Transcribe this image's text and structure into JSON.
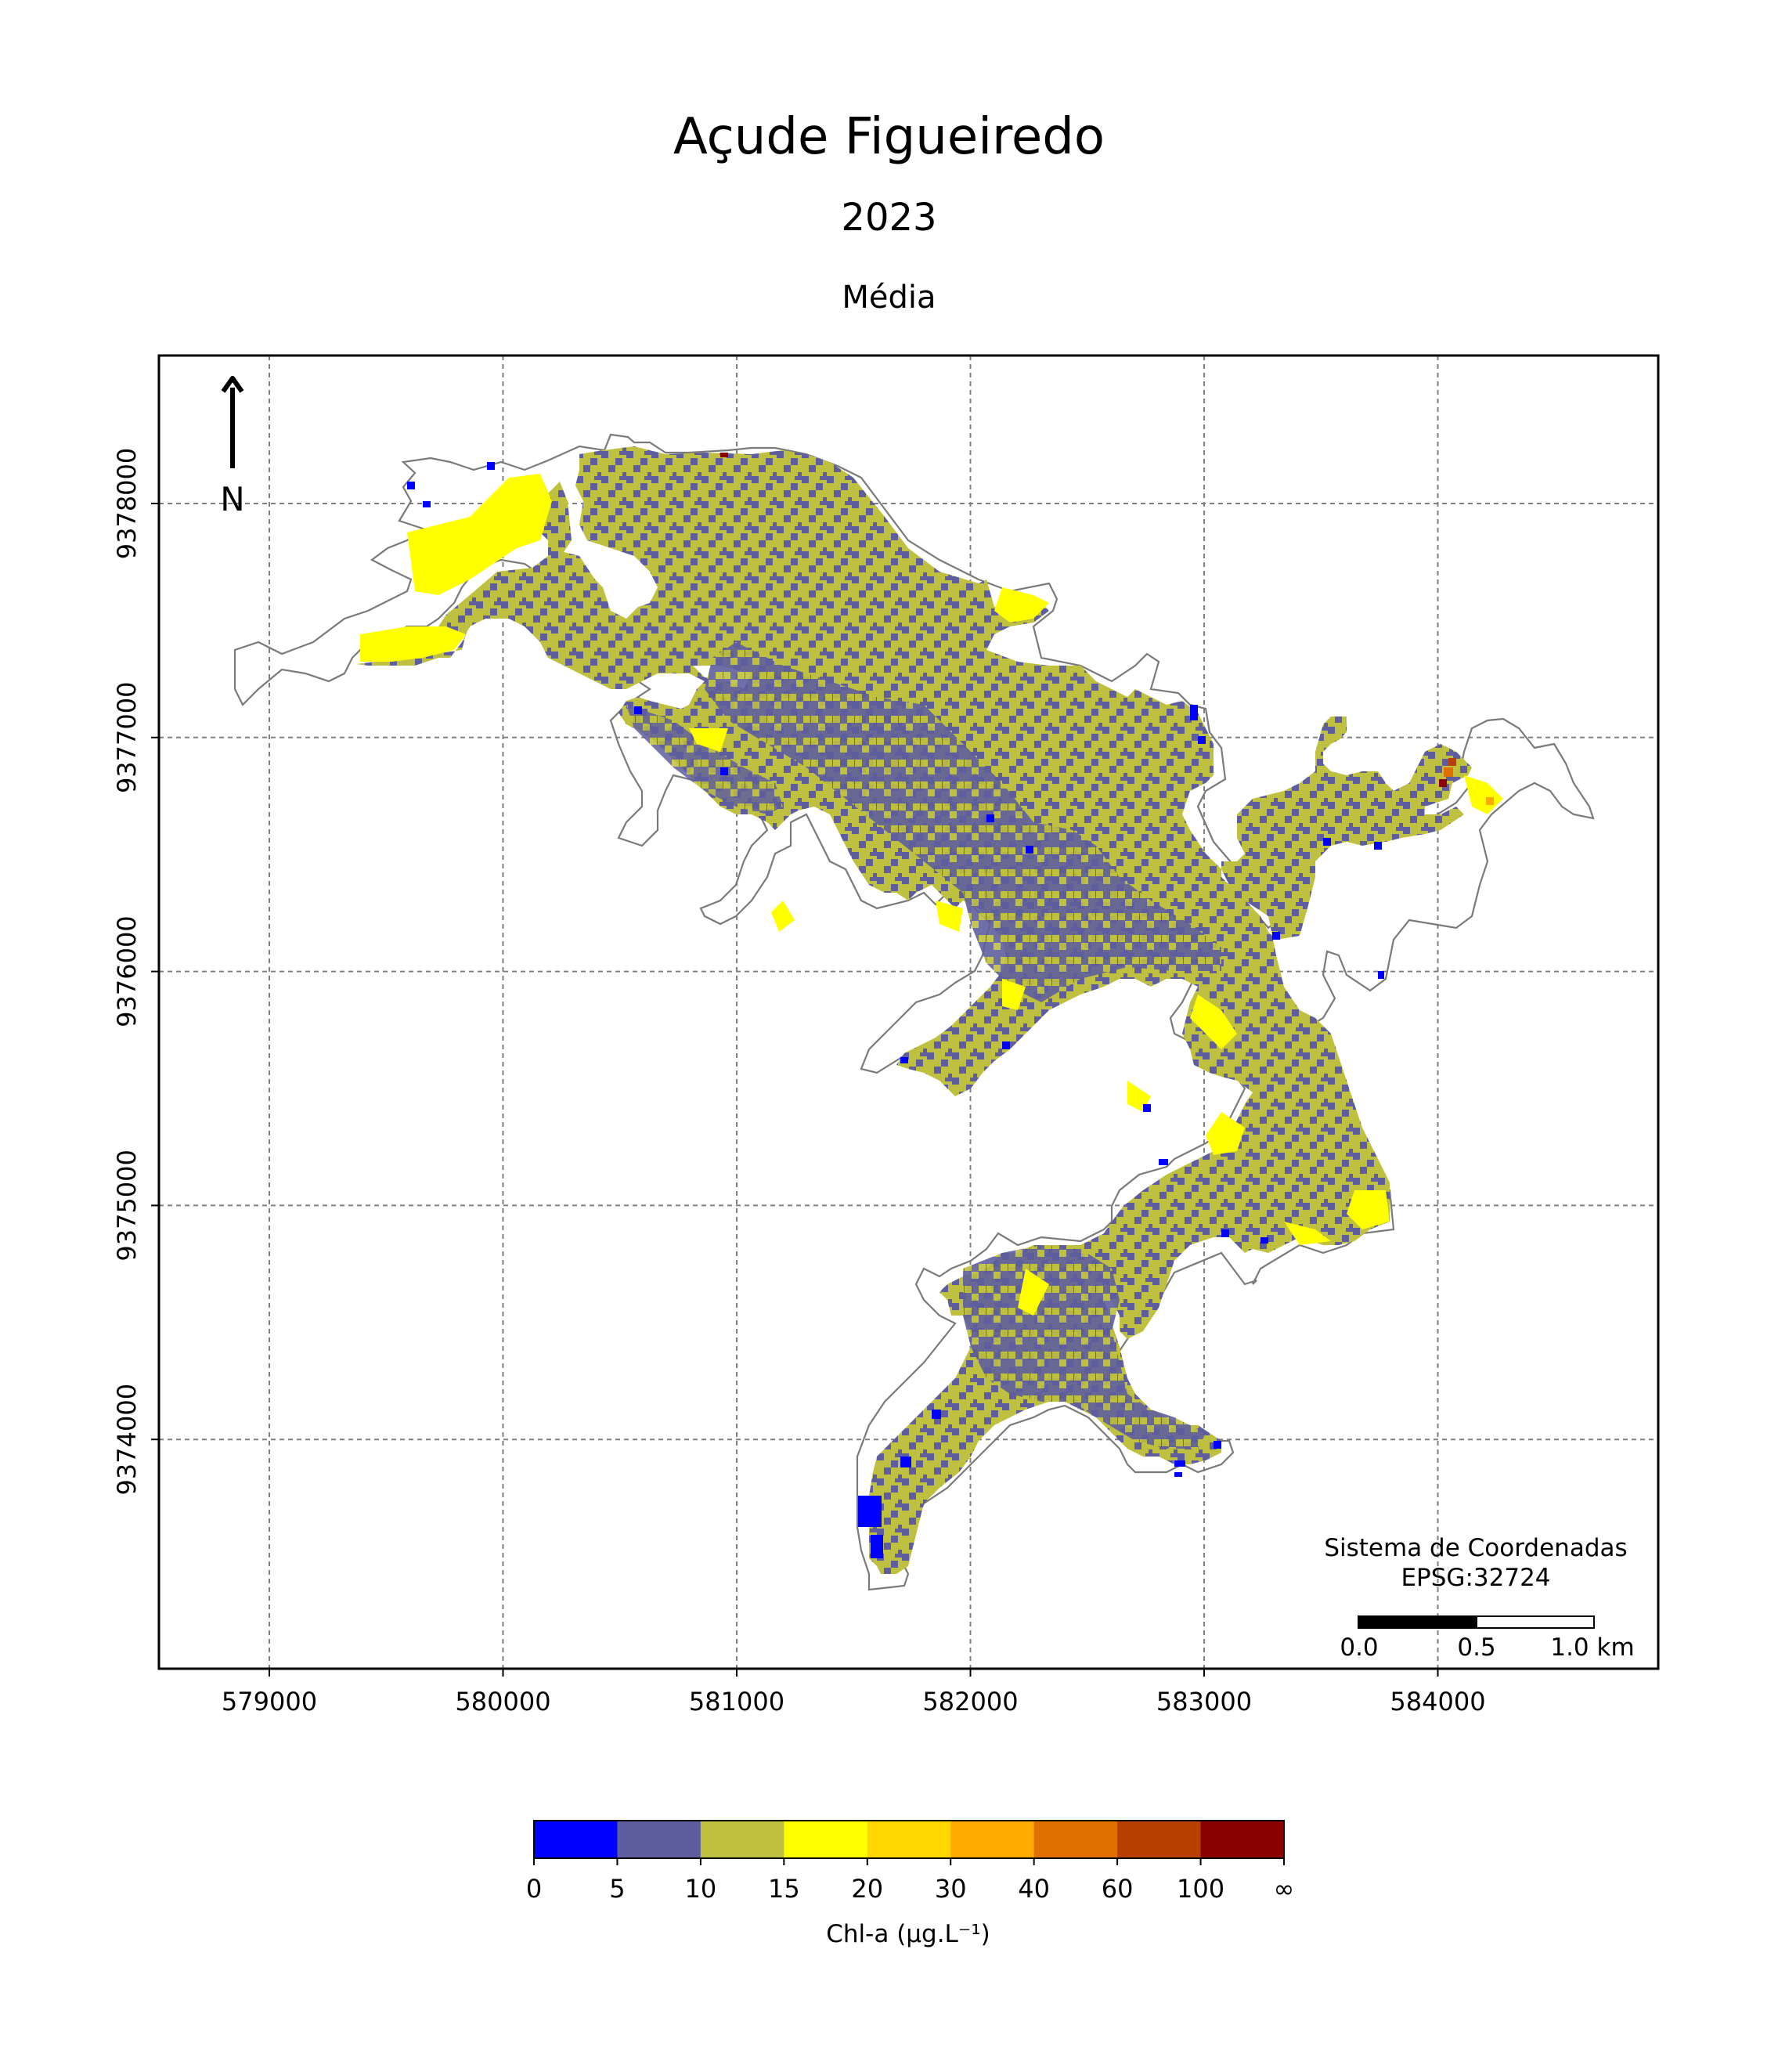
{
  "title": "Açude Figueiredo",
  "year": "2023",
  "statistic": "Média",
  "north_label": "N",
  "crs": {
    "line1": "Sistema de Coordenadas",
    "line2": "EPSG:32724"
  },
  "scalebar": {
    "labels": [
      "0.0",
      "0.5",
      "1.0 km"
    ]
  },
  "axes": {
    "x_ticks": [
      "579000",
      "580000",
      "581000",
      "582000",
      "583000",
      "584000"
    ],
    "y_ticks": [
      "9378000",
      "9377000",
      "9376000",
      "9375000",
      "9374000"
    ],
    "grid": true
  },
  "colorbar": {
    "label": "Chl-a (μg.L⁻¹)",
    "tick_labels": [
      "0",
      "5",
      "10",
      "15",
      "20",
      "30",
      "40",
      "60",
      "100",
      "∞"
    ],
    "colors": [
      "#0000ff",
      "#5e5e9e",
      "#bfbf40",
      "#ffff00",
      "#ffd700",
      "#ffaa00",
      "#e07000",
      "#b84000",
      "#8b0000"
    ]
  },
  "map_colors": {
    "dominant": "#bfbf40",
    "secondary": "#5e5e9e",
    "edges": "#ffff00",
    "shoreline": "#7a7a7a"
  }
}
